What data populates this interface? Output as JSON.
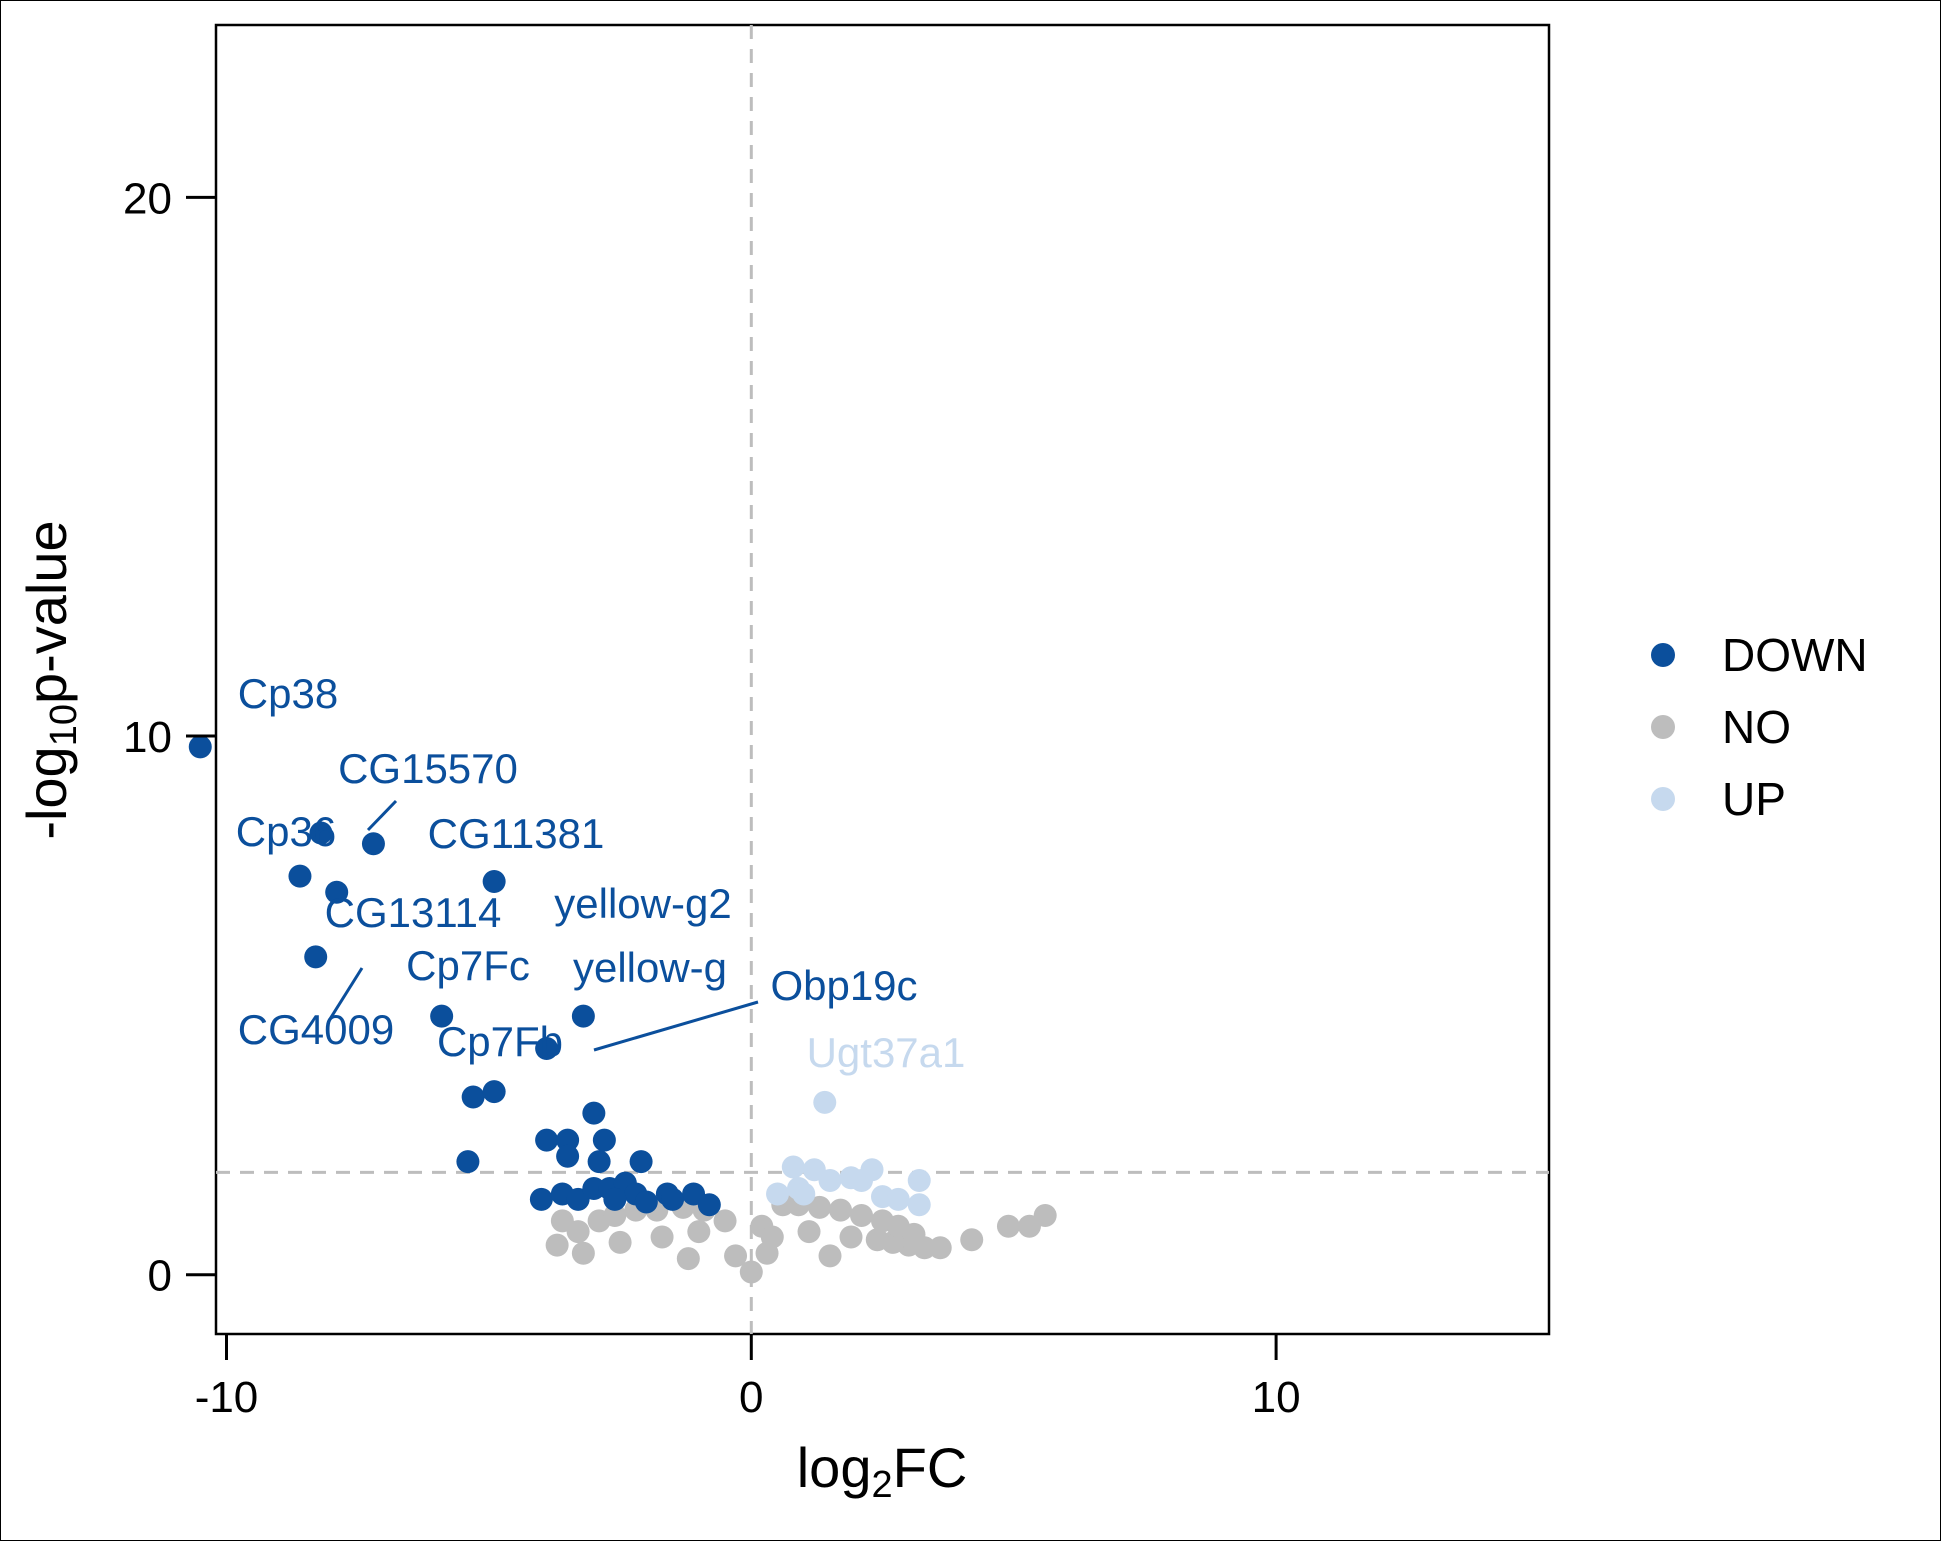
{
  "chart_data": {
    "type": "scatter",
    "title": "",
    "xlabel": {
      "base": "log",
      "sub": "2",
      "rest": "FC"
    },
    "ylabel": {
      "base": "-log",
      "sub": "10",
      "rest": "p-value"
    },
    "xlim": [
      -10.2,
      15.2
    ],
    "ylim": [
      -1.1,
      23.2
    ],
    "x_ticks": [
      {
        "value": -10,
        "label": "-10"
      },
      {
        "value": 0,
        "label": "0"
      },
      {
        "value": 10,
        "label": "10"
      }
    ],
    "y_ticks": [
      {
        "value": 0,
        "label": "0"
      },
      {
        "value": 10,
        "label": "10"
      },
      {
        "value": 20,
        "label": "20"
      }
    ],
    "thresholds": {
      "x": 0,
      "y": 1.9
    },
    "grid": false,
    "legend_position": "right",
    "legend": [
      {
        "name": "DOWN",
        "color": "#0b4f9c"
      },
      {
        "name": "NO",
        "color": "#bdbdbd"
      },
      {
        "name": "UP",
        "color": "#c6d9ee"
      }
    ],
    "colors": {
      "DOWN": "#0b4f9c",
      "NO": "#bdbdbd",
      "UP": "#c6d9ee"
    },
    "series": [
      {
        "name": "DOWN",
        "points": [
          [
            -10.5,
            9.8
          ],
          [
            -8.2,
            8.2
          ],
          [
            -7.2,
            8.0
          ],
          [
            -8.6,
            7.4
          ],
          [
            -7.9,
            7.1
          ],
          [
            -4.9,
            7.3
          ],
          [
            -8.3,
            5.9
          ],
          [
            -5.9,
            4.8
          ],
          [
            -3.2,
            4.8
          ],
          [
            -3.9,
            4.2
          ],
          [
            -5.3,
            3.3
          ],
          [
            -4.9,
            3.4
          ],
          [
            -5.4,
            2.1
          ],
          [
            -3.0,
            3.0
          ],
          [
            -3.9,
            2.5
          ],
          [
            -3.5,
            2.5
          ],
          [
            -2.8,
            2.5
          ],
          [
            -3.5,
            2.2
          ],
          [
            -2.9,
            2.1
          ],
          [
            -2.1,
            2.1
          ],
          [
            -4.0,
            1.4
          ],
          [
            -3.6,
            1.5
          ],
          [
            -3.3,
            1.4
          ],
          [
            -3.0,
            1.6
          ],
          [
            -2.7,
            1.6
          ],
          [
            -2.4,
            1.7
          ],
          [
            -2.2,
            1.5
          ],
          [
            -1.6,
            1.5
          ],
          [
            -1.1,
            1.5
          ],
          [
            -1.5,
            1.4
          ],
          [
            -0.8,
            1.3
          ],
          [
            -2.0,
            1.35
          ],
          [
            -2.6,
            1.4
          ]
        ]
      },
      {
        "name": "NO",
        "points": [
          [
            4.9,
            0.9
          ],
          [
            5.3,
            0.9
          ],
          [
            5.6,
            1.1
          ],
          [
            4.2,
            0.65
          ],
          [
            3.6,
            0.5
          ],
          [
            3.3,
            0.5
          ],
          [
            3.0,
            0.55
          ],
          [
            2.7,
            0.6
          ],
          [
            2.4,
            0.65
          ],
          [
            -3.7,
            0.55
          ],
          [
            -3.6,
            1.0
          ],
          [
            -3.3,
            0.8
          ],
          [
            -2.9,
            1.0
          ],
          [
            -2.6,
            1.1
          ],
          [
            -2.2,
            1.2
          ],
          [
            -1.8,
            1.2
          ],
          [
            -1.3,
            1.25
          ],
          [
            -0.9,
            1.2
          ],
          [
            -0.5,
            1.0
          ],
          [
            0.2,
            0.9
          ],
          [
            0.6,
            1.3
          ],
          [
            0.9,
            1.3
          ],
          [
            1.3,
            1.25
          ],
          [
            1.7,
            1.2
          ],
          [
            2.1,
            1.1
          ],
          [
            2.5,
            1.0
          ],
          [
            2.8,
            0.9
          ],
          [
            3.1,
            0.75
          ],
          [
            -3.2,
            0.4
          ],
          [
            -2.5,
            0.6
          ],
          [
            -1.7,
            0.7
          ],
          [
            -1.0,
            0.8
          ],
          [
            0.4,
            0.7
          ],
          [
            1.1,
            0.8
          ],
          [
            1.9,
            0.7
          ],
          [
            -0.3,
            0.35
          ],
          [
            0.3,
            0.4
          ],
          [
            -1.2,
            0.3
          ],
          [
            1.5,
            0.35
          ],
          [
            0.0,
            0.05
          ]
        ]
      },
      {
        "name": "UP",
        "points": [
          [
            1.4,
            3.2
          ],
          [
            0.8,
            2.0
          ],
          [
            1.2,
            1.95
          ],
          [
            1.5,
            1.75
          ],
          [
            1.9,
            1.8
          ],
          [
            2.3,
            1.95
          ],
          [
            2.1,
            1.75
          ],
          [
            3.2,
            1.75
          ],
          [
            3.2,
            1.3
          ],
          [
            0.9,
            1.6
          ],
          [
            2.5,
            1.45
          ],
          [
            1.0,
            1.5
          ],
          [
            2.8,
            1.4
          ],
          [
            0.5,
            1.5
          ]
        ]
      }
    ],
    "labels": [
      {
        "text": "Cp38",
        "series": "DOWN",
        "x": -10.5,
        "y": 9.8
      },
      {
        "text": "CG15570",
        "series": "DOWN",
        "x": -8.2,
        "y": 8.2
      },
      {
        "text": "Cp36",
        "series": "DOWN",
        "x": -8.6,
        "y": 7.4
      },
      {
        "text": "CG11381",
        "series": "DOWN",
        "x": -7.2,
        "y": 8.0
      },
      {
        "text": "yellow-g2",
        "series": "DOWN",
        "x": -4.9,
        "y": 7.3
      },
      {
        "text": "CG13114",
        "series": "DOWN",
        "x": -7.9,
        "y": 7.1
      },
      {
        "text": "CG4009",
        "series": "DOWN",
        "x": -8.3,
        "y": 5.9
      },
      {
        "text": "Cp7Fc",
        "series": "DOWN",
        "x": -5.9,
        "y": 4.8
      },
      {
        "text": "yellow-g",
        "series": "DOWN",
        "x": -3.2,
        "y": 4.8
      },
      {
        "text": "Obp19c",
        "series": "DOWN",
        "x": -3.9,
        "y": 4.2
      },
      {
        "text": "Cp7Fb",
        "series": "DOWN",
        "x": -5.9,
        "y": 4.8
      },
      {
        "text": "Ugt37a1",
        "series": "UP",
        "x": 1.4,
        "y": 3.2
      }
    ]
  }
}
